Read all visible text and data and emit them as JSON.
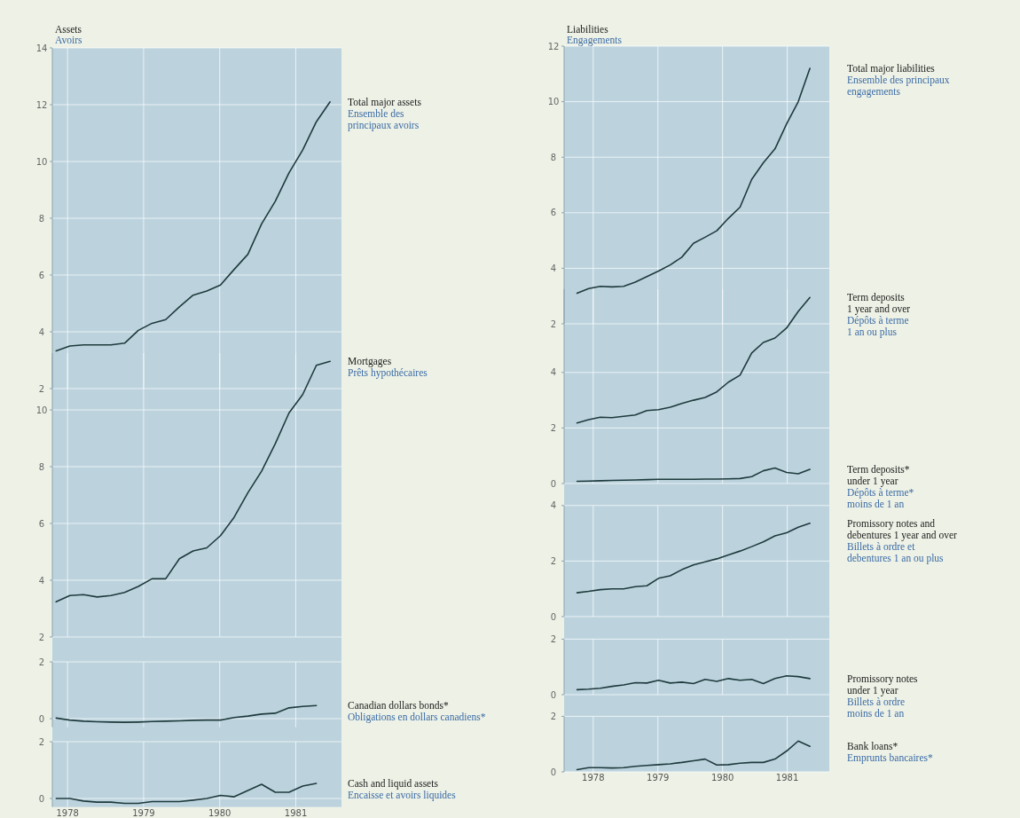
{
  "chart_data": [
    {
      "type": "line",
      "annotations": [
        "Ensemble des\nprincipaux avoirs",
        "Assets",
        "Avoirs"
      ],
      "xlim": [
        1977.8,
        1981.6
      ],
      "xticks": [
        1978,
        1979,
        1980,
        1981
      ],
      "ylim": [
        2,
        14
      ],
      "yticks": [
        2,
        4,
        6,
        8,
        10,
        12,
        14
      ],
      "tick_labels": "y",
      "grid": true,
      "x": [
        1977.85,
        1978.03,
        1978.21,
        1978.39,
        1978.57,
        1978.75,
        1978.93,
        1979.11,
        1979.29,
        1979.47,
        1979.65,
        1979.83,
        1980.01,
        1980.19,
        1980.37,
        1980.55,
        1980.73,
        1980.91,
        1981.09,
        1981.27,
        1981.45
      ],
      "series": [
        {
          "name": "Total major assets",
          "color": "#1e3a3c",
          "values": [
            3.33,
            3.5,
            3.54,
            3.54,
            3.54,
            3.6,
            4.05,
            4.3,
            4.43,
            4.88,
            5.29,
            5.44,
            5.65,
            6.2,
            6.73,
            7.8,
            8.6,
            9.6,
            10.4,
            11.4,
            12.1
          ]
        }
      ]
    },
    {
      "type": "line",
      "annotations": [
        "Prêts hypothécaires"
      ],
      "xlim": [
        1977.8,
        1981.6
      ],
      "xticks": [
        1978,
        1979,
        1980,
        1981
      ],
      "ylim": [
        2,
        12
      ],
      "yticks": [
        2,
        4,
        6,
        8,
        10
      ],
      "tick_labels": "y",
      "grid": true,
      "x": [
        1977.85,
        1978.03,
        1978.21,
        1978.39,
        1978.57,
        1978.75,
        1978.93,
        1979.11,
        1979.29,
        1979.47,
        1979.65,
        1979.83,
        1980.01,
        1980.19,
        1980.37,
        1980.55,
        1980.73,
        1980.91,
        1981.09,
        1981.27,
        1981.45
      ],
      "series": [
        {
          "name": "Mortgages",
          "color": "#1e3a3c",
          "values": [
            3.24,
            3.46,
            3.49,
            3.41,
            3.46,
            3.57,
            3.78,
            4.05,
            4.05,
            4.76,
            5.03,
            5.14,
            5.57,
            6.22,
            7.08,
            7.84,
            8.81,
            9.89,
            10.54,
            11.57,
            11.71
          ]
        }
      ]
    },
    {
      "type": "line",
      "annotations": [
        "Obligations en dollars canadiens*"
      ],
      "xlim": [
        1977.8,
        1981.6
      ],
      "xticks": [
        1978,
        1979,
        1980,
        1981
      ],
      "ylim": [
        -0.3,
        2
      ],
      "yticks": [
        0,
        2
      ],
      "tick_labels": "y",
      "grid": true,
      "x": [
        1977.85,
        1978.03,
        1978.21,
        1978.39,
        1978.57,
        1978.75,
        1978.93,
        1979.11,
        1979.29,
        1979.47,
        1979.65,
        1979.83,
        1980.01,
        1980.19,
        1980.37,
        1980.55,
        1980.73,
        1980.91,
        1981.09,
        1981.27
      ],
      "series": [
        {
          "name": "Canadian dollars bonds*",
          "color": "#1e3a3c",
          "values": [
            0.02,
            -0.05,
            -0.09,
            -0.11,
            -0.12,
            -0.13,
            -0.12,
            -0.1,
            -0.09,
            -0.08,
            -0.06,
            -0.05,
            -0.05,
            0.04,
            0.09,
            0.16,
            0.19,
            0.38,
            0.43,
            0.46
          ]
        }
      ]
    },
    {
      "type": "line",
      "annotations": [
        "Encaisse et avoirs liquides"
      ],
      "xlim": [
        1977.8,
        1981.6
      ],
      "xticks": [
        1978,
        1979,
        1980,
        1981
      ],
      "ylim": [
        -0.3,
        2
      ],
      "yticks": [
        0,
        2
      ],
      "grid": true,
      "x": [
        1977.85,
        1978.03,
        1978.21,
        1978.39,
        1978.57,
        1978.75,
        1978.93,
        1979.11,
        1979.29,
        1979.47,
        1979.65,
        1979.83,
        1980.01,
        1980.19,
        1980.37,
        1980.55,
        1980.73,
        1980.91,
        1981.09,
        1981.27
      ],
      "series": [
        {
          "name": "Cash and liquid assets",
          "color": "#1e3a3c",
          "values": [
            0,
            0,
            -0.09,
            -0.13,
            -0.13,
            -0.17,
            -0.17,
            -0.11,
            -0.11,
            -0.11,
            -0.06,
            0,
            0.11,
            0.06,
            0.28,
            0.5,
            0.22,
            0.22,
            0.44,
            0.53
          ]
        }
      ]
    },
    {
      "type": "line",
      "annotations": [
        "Ensemble des principaux\nengagements",
        "Liabilities",
        "Engagements"
      ],
      "xlim": [
        1977.55,
        1981.65
      ],
      "xticks": [
        1978,
        1979,
        1980,
        1981
      ],
      "ylim": [
        2,
        12
      ],
      "yticks": [
        2,
        4,
        6,
        8,
        10,
        12
      ],
      "tick_labels": "y",
      "grid": true,
      "x": [
        1977.75,
        1977.93,
        1978.11,
        1978.29,
        1978.47,
        1978.65,
        1978.83,
        1979.01,
        1979.19,
        1979.37,
        1979.55,
        1979.73,
        1979.91,
        1980.09,
        1980.27,
        1980.45,
        1980.63,
        1980.81,
        1980.99,
        1981.17,
        1981.35
      ],
      "series": [
        {
          "name": "Total major liabilities",
          "color": "#1e3a3c",
          "values": [
            3.1,
            3.27,
            3.35,
            3.33,
            3.35,
            3.5,
            3.7,
            3.9,
            4.12,
            4.4,
            4.9,
            5.12,
            5.35,
            5.8,
            6.2,
            7.2,
            7.8,
            8.3,
            9.2,
            10.0,
            11.2
          ]
        }
      ]
    },
    {
      "type": "line",
      "annotations": [
        "Dépôts à terme\n1 an ou plus",
        "Dépôts à terme*\nmoins de 1 an"
      ],
      "xlim": [
        1977.55,
        1981.65
      ],
      "xticks": [
        1978,
        1979,
        1980,
        1981
      ],
      "ylim": [
        0,
        7
      ],
      "yticks": [
        0,
        2,
        4
      ],
      "tick_labels": "y",
      "grid": true,
      "x": [
        1977.75,
        1977.93,
        1978.11,
        1978.29,
        1978.47,
        1978.65,
        1978.83,
        1979.01,
        1979.19,
        1979.37,
        1979.55,
        1979.73,
        1979.91,
        1980.09,
        1980.27,
        1980.45,
        1980.63,
        1980.81,
        1980.99,
        1981.17,
        1981.35
      ],
      "series": [
        {
          "name": "Term deposits\n1 year and over",
          "color": "#1e3a3c",
          "values": [
            2.18,
            2.3,
            2.39,
            2.37,
            2.42,
            2.47,
            2.63,
            2.66,
            2.75,
            2.88,
            3.0,
            3.1,
            3.3,
            3.65,
            3.9,
            4.7,
            5.08,
            5.24,
            5.6,
            6.2,
            6.7
          ]
        },
        {
          "name": "Term deposits*\nunder 1 year",
          "color": "#1e3a3c",
          "values": [
            0.08,
            0.09,
            0.1,
            0.11,
            0.12,
            0.13,
            0.14,
            0.15,
            0.15,
            0.15,
            0.15,
            0.16,
            0.16,
            0.17,
            0.18,
            0.25,
            0.46,
            0.56,
            0.4,
            0.35,
            0.51
          ]
        }
      ]
    },
    {
      "type": "line",
      "annotations": [
        "Billets à ordre et\ndebentures 1 an ou plus"
      ],
      "xlim": [
        1977.55,
        1981.65
      ],
      "xticks": [
        1978,
        1979,
        1980,
        1981
      ],
      "ylim": [
        0,
        4
      ],
      "yticks": [
        0,
        2,
        4
      ],
      "tick_labels": "y",
      "grid": true,
      "x": [
        1977.75,
        1977.93,
        1978.11,
        1978.29,
        1978.47,
        1978.65,
        1978.83,
        1979.01,
        1979.19,
        1979.37,
        1979.55,
        1979.73,
        1979.91,
        1980.09,
        1980.27,
        1980.45,
        1980.63,
        1980.81,
        1980.99,
        1981.17,
        1981.35
      ],
      "series": [
        {
          "name": "Promissory notes and\ndebentures 1 year and over",
          "color": "#1e3a3c",
          "values": [
            0.86,
            0.91,
            0.97,
            1.0,
            1.0,
            1.08,
            1.11,
            1.38,
            1.47,
            1.69,
            1.86,
            1.97,
            2.08,
            2.22,
            2.36,
            2.52,
            2.69,
            2.91,
            3.02,
            3.22,
            3.36
          ]
        }
      ]
    },
    {
      "type": "line",
      "annotations": [
        "Billets à ordre\nmoins de 1 an"
      ],
      "xlim": [
        1977.55,
        1981.65
      ],
      "xticks": [
        1978,
        1979,
        1980,
        1981
      ],
      "ylim": [
        0,
        2
      ],
      "yticks": [
        0,
        2
      ],
      "tick_labels": "y",
      "grid": true,
      "x": [
        1977.75,
        1977.93,
        1978.11,
        1978.29,
        1978.47,
        1978.65,
        1978.83,
        1979.01,
        1979.19,
        1979.37,
        1979.55,
        1979.73,
        1979.91,
        1980.09,
        1980.27,
        1980.45,
        1980.63,
        1980.81,
        1980.99,
        1981.17,
        1981.35
      ],
      "series": [
        {
          "name": "Promissory notes\nunder 1 year",
          "color": "#1e3a3c",
          "values": [
            0.18,
            0.2,
            0.23,
            0.3,
            0.35,
            0.43,
            0.42,
            0.52,
            0.42,
            0.45,
            0.4,
            0.55,
            0.48,
            0.58,
            0.52,
            0.55,
            0.4,
            0.58,
            0.68,
            0.65,
            0.58
          ]
        }
      ]
    },
    {
      "type": "line",
      "annotations": [
        "Emprunts bancaires*"
      ],
      "xlim": [
        1977.55,
        1981.65
      ],
      "xticks": [
        1978,
        1979,
        1980,
        1981
      ],
      "ylim": [
        0,
        2
      ],
      "yticks": [
        0,
        2
      ],
      "grid": true,
      "x": [
        1977.75,
        1977.93,
        1978.11,
        1978.29,
        1978.47,
        1978.65,
        1978.83,
        1979.01,
        1979.19,
        1979.37,
        1979.55,
        1979.73,
        1979.91,
        1980.09,
        1980.27,
        1980.45,
        1980.63,
        1980.81,
        1980.99,
        1981.17,
        1981.35
      ],
      "series": [
        {
          "name": "Bank loans*",
          "color": "#1e3a3c",
          "values": [
            0.08,
            0.15,
            0.15,
            0.14,
            0.15,
            0.2,
            0.23,
            0.26,
            0.29,
            0.34,
            0.4,
            0.46,
            0.25,
            0.26,
            0.31,
            0.34,
            0.34,
            0.46,
            0.75,
            1.11,
            0.92
          ]
        }
      ]
    }
  ]
}
